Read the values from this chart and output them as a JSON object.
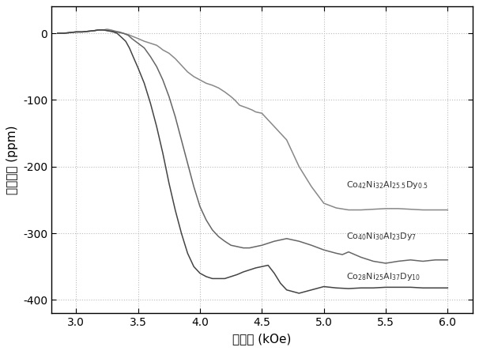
{
  "title": "",
  "xlabel": "外磁场 (kOe)",
  "ylabel": "磁致应变 (ppm)",
  "xlim": [
    2.8,
    6.2
  ],
  "ylim": [
    -420,
    40
  ],
  "yticks": [
    0,
    -100,
    -200,
    -300,
    -400
  ],
  "xticks": [
    3.0,
    3.5,
    4.0,
    4.5,
    5.0,
    5.5,
    6.0
  ],
  "background_color": "#ffffff",
  "colors": [
    "#888888",
    "#666666",
    "#444444"
  ],
  "series1_x": [
    2.85,
    2.9,
    2.95,
    3.0,
    3.05,
    3.1,
    3.15,
    3.18,
    3.22,
    3.25,
    3.28,
    3.3,
    3.32,
    3.35,
    3.38,
    3.42,
    3.5,
    3.55,
    3.6,
    3.65,
    3.68,
    3.7,
    3.75,
    3.8,
    3.85,
    3.9,
    3.95,
    4.0,
    4.05,
    4.1,
    4.15,
    4.2,
    4.25,
    4.28,
    4.32,
    4.38,
    4.42,
    4.45,
    4.5,
    4.55,
    4.6,
    4.7,
    4.8,
    4.9,
    5.0,
    5.1,
    5.2,
    5.3,
    5.4,
    5.5,
    5.6,
    5.7,
    5.8,
    5.9,
    6.0
  ],
  "series1_y": [
    0,
    0,
    1,
    2,
    2,
    3,
    4,
    5,
    5,
    6,
    5,
    4,
    3,
    2,
    0,
    -2,
    -8,
    -12,
    -15,
    -18,
    -22,
    -25,
    -30,
    -38,
    -48,
    -58,
    -65,
    -70,
    -75,
    -78,
    -82,
    -88,
    -95,
    -100,
    -108,
    -112,
    -115,
    -118,
    -120,
    -130,
    -140,
    -160,
    -200,
    -230,
    -255,
    -262,
    -265,
    -265,
    -264,
    -263,
    -263,
    -264,
    -265,
    -265,
    -265
  ],
  "series2_x": [
    2.85,
    2.9,
    2.95,
    3.0,
    3.05,
    3.1,
    3.15,
    3.18,
    3.22,
    3.25,
    3.3,
    3.35,
    3.38,
    3.42,
    3.45,
    3.5,
    3.55,
    3.6,
    3.65,
    3.7,
    3.75,
    3.8,
    3.85,
    3.9,
    3.95,
    4.0,
    4.05,
    4.1,
    4.15,
    4.2,
    4.25,
    4.3,
    4.35,
    4.4,
    4.45,
    4.5,
    4.55,
    4.6,
    4.65,
    4.7,
    4.75,
    4.8,
    4.9,
    5.0,
    5.1,
    5.15,
    5.2,
    5.25,
    5.3,
    5.4,
    5.5,
    5.6,
    5.7,
    5.8,
    5.9,
    6.0
  ],
  "series2_y": [
    0,
    0,
    1,
    2,
    2,
    3,
    4,
    5,
    5,
    4,
    3,
    1,
    0,
    -3,
    -8,
    -15,
    -22,
    -35,
    -50,
    -70,
    -95,
    -125,
    -160,
    -195,
    -230,
    -260,
    -280,
    -295,
    -305,
    -312,
    -318,
    -320,
    -322,
    -322,
    -320,
    -318,
    -315,
    -312,
    -310,
    -308,
    -310,
    -312,
    -318,
    -325,
    -330,
    -332,
    -328,
    -332,
    -336,
    -342,
    -345,
    -342,
    -340,
    -342,
    -340,
    -340
  ],
  "series3_x": [
    2.85,
    2.9,
    2.95,
    3.0,
    3.05,
    3.1,
    3.15,
    3.18,
    3.22,
    3.25,
    3.3,
    3.33,
    3.36,
    3.4,
    3.43,
    3.46,
    3.5,
    3.55,
    3.6,
    3.65,
    3.7,
    3.75,
    3.8,
    3.85,
    3.9,
    3.95,
    4.0,
    4.05,
    4.1,
    4.15,
    4.2,
    4.25,
    4.3,
    4.35,
    4.4,
    4.45,
    4.5,
    4.55,
    4.6,
    4.65,
    4.7,
    4.8,
    4.9,
    5.0,
    5.1,
    5.2,
    5.3,
    5.4,
    5.5,
    5.6,
    5.7,
    5.8,
    5.9,
    6.0
  ],
  "series3_y": [
    0,
    0,
    1,
    2,
    2,
    3,
    4,
    5,
    5,
    4,
    2,
    0,
    -5,
    -12,
    -22,
    -35,
    -52,
    -75,
    -105,
    -140,
    -180,
    -225,
    -265,
    -300,
    -330,
    -350,
    -360,
    -365,
    -368,
    -368,
    -368,
    -365,
    -362,
    -358,
    -355,
    -352,
    -350,
    -348,
    -360,
    -375,
    -385,
    -390,
    -385,
    -380,
    -382,
    -383,
    -382,
    -382,
    -381,
    -381,
    -381,
    -382,
    -382,
    -382
  ]
}
